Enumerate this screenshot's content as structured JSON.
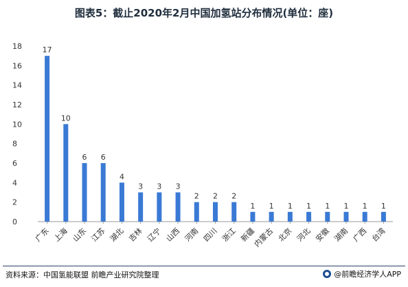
{
  "chart_data": {
    "type": "bar",
    "title": "图表5：截止2020年2月中国加氢站分布情况(单位：座)",
    "categories": [
      "广东",
      "上海",
      "山东",
      "江苏",
      "湖北",
      "吉林",
      "辽宁",
      "山西",
      "河南",
      "四川",
      "浙江",
      "新疆",
      "内蒙古",
      "北京",
      "河北",
      "安徽",
      "湖南",
      "广西",
      "台湾"
    ],
    "values": [
      17,
      10,
      6,
      6,
      4,
      3,
      3,
      3,
      2,
      2,
      2,
      1,
      1,
      1,
      1,
      1,
      1,
      1,
      1
    ],
    "ylim": [
      0,
      18
    ],
    "yticks": [
      0,
      2,
      4,
      6,
      8,
      10,
      12,
      14,
      16,
      18
    ],
    "grid": false,
    "bar_color": "#3a7ad5",
    "xlabel": "",
    "ylabel": ""
  },
  "footer": {
    "source": "资料来源：中国氢能联盟 前瞻产业研究院整理",
    "brand": "@前瞻经济学人APP"
  },
  "colors": {
    "axis": "#999999",
    "text": "#333333"
  }
}
